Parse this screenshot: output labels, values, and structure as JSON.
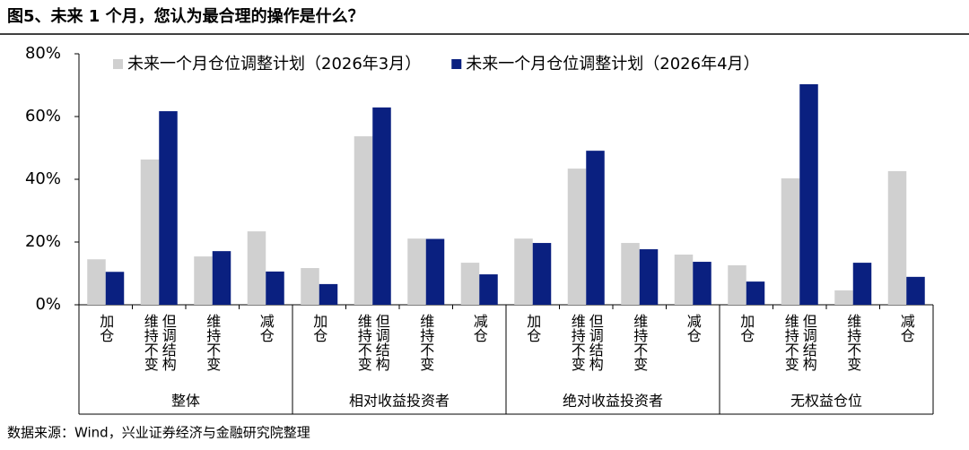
{
  "title": "图5、未来 1 个月，您认为最合理的操作是什么？",
  "source": "数据来源：Wind，兴业证券经济与金融研究院整理",
  "chart_data": {
    "type": "bar",
    "groups": [
      "整体",
      "相对收益投资者",
      "绝对收益投资者",
      "无权益仓位"
    ],
    "categories": [
      [
        "加仓"
      ],
      [
        "维持不变",
        "但调结构"
      ],
      [
        "维持不变"
      ],
      [
        "减仓"
      ],
      [
        "加仓"
      ],
      [
        "维持不变",
        "但调结构"
      ],
      [
        "维持不变"
      ],
      [
        "减仓"
      ],
      [
        "加仓"
      ],
      [
        "维持不变",
        "但调结构"
      ],
      [
        "维持不变"
      ],
      [
        "减仓"
      ],
      [
        "加仓"
      ],
      [
        "维持不变",
        "但调结构"
      ],
      [
        "维持不变"
      ],
      [
        "减仓"
      ]
    ],
    "series": [
      {
        "name": "未来一个月仓位调整计划（2026年3月）",
        "color": "#d0d0d0",
        "values": [
          14.5,
          46.3,
          15.4,
          23.4,
          11.7,
          53.7,
          21.1,
          13.4,
          21.1,
          43.4,
          19.7,
          16.0,
          12.6,
          40.3,
          4.6,
          42.6
        ]
      },
      {
        "name": "未来一个月仓位调整计划（2026年4月）",
        "color": "#0a2080",
        "values": [
          10.5,
          61.7,
          17.1,
          10.6,
          6.6,
          62.9,
          21.0,
          9.7,
          19.7,
          49.1,
          17.7,
          13.7,
          7.4,
          70.3,
          13.4,
          8.9
        ]
      }
    ],
    "ylim": [
      0,
      80
    ],
    "yticks": [
      {
        "value": 0,
        "label": "0%"
      },
      {
        "value": 20,
        "label": "20%"
      },
      {
        "value": 40,
        "label": "40%"
      },
      {
        "value": 60,
        "label": "60%"
      },
      {
        "value": 80,
        "label": "80%"
      }
    ],
    "legend": "top"
  }
}
